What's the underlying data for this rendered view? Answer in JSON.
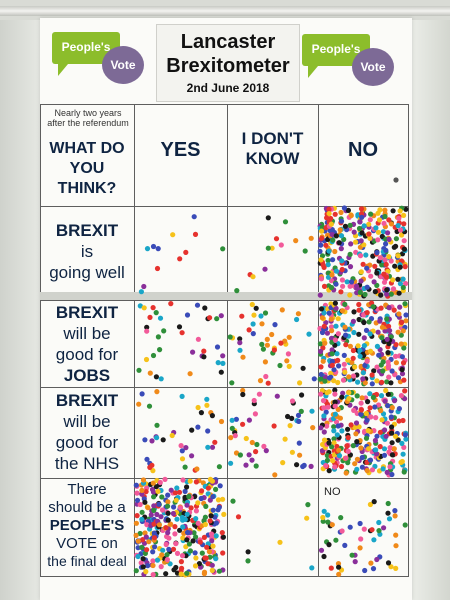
{
  "header": {
    "title_line1": "Lancaster",
    "title_line2": "Brexitometer",
    "date": "2nd June 2018"
  },
  "logos": {
    "left": {
      "bubble": "People's",
      "circle": "Vote"
    },
    "right": {
      "bubble": "People's",
      "circle": "Vote"
    }
  },
  "columns": {
    "question_small": "Nearly two years after the referendum",
    "question_l1": "WHAT DO",
    "question_l2": "YOU",
    "question_l3": "THINK?",
    "yes": "YES",
    "dont_know_l1": "I DON'T",
    "dont_know_l2": "KNOW",
    "no": "NO"
  },
  "rows": [
    {
      "l1": "BREXIT",
      "l2": "is",
      "l3": "going well"
    },
    {
      "l1": "BREXIT",
      "l2": "will be",
      "l3": "good for",
      "l4": "JOBS"
    },
    {
      "l1": "BREXIT",
      "l2": "will be",
      "l3": "good for",
      "l4": "the NHS"
    },
    {
      "l1": "There",
      "l2": "should be a",
      "l3": "PEOPLE'S",
      "l4": "VOTE on",
      "l5": "the final deal"
    }
  ],
  "annotations": {
    "handwritten_no": "NO"
  },
  "dot_colors": [
    "#1a1a1a",
    "#e6322e",
    "#2f8f3a",
    "#f08a1a",
    "#3a4bb8",
    "#8a2f9a",
    "#f25a9a",
    "#f6c21a",
    "#1aa6c8"
  ],
  "colors": {
    "green": "#8cbd2b",
    "purple": "#7d6a96",
    "ink": "#0f2442"
  }
}
